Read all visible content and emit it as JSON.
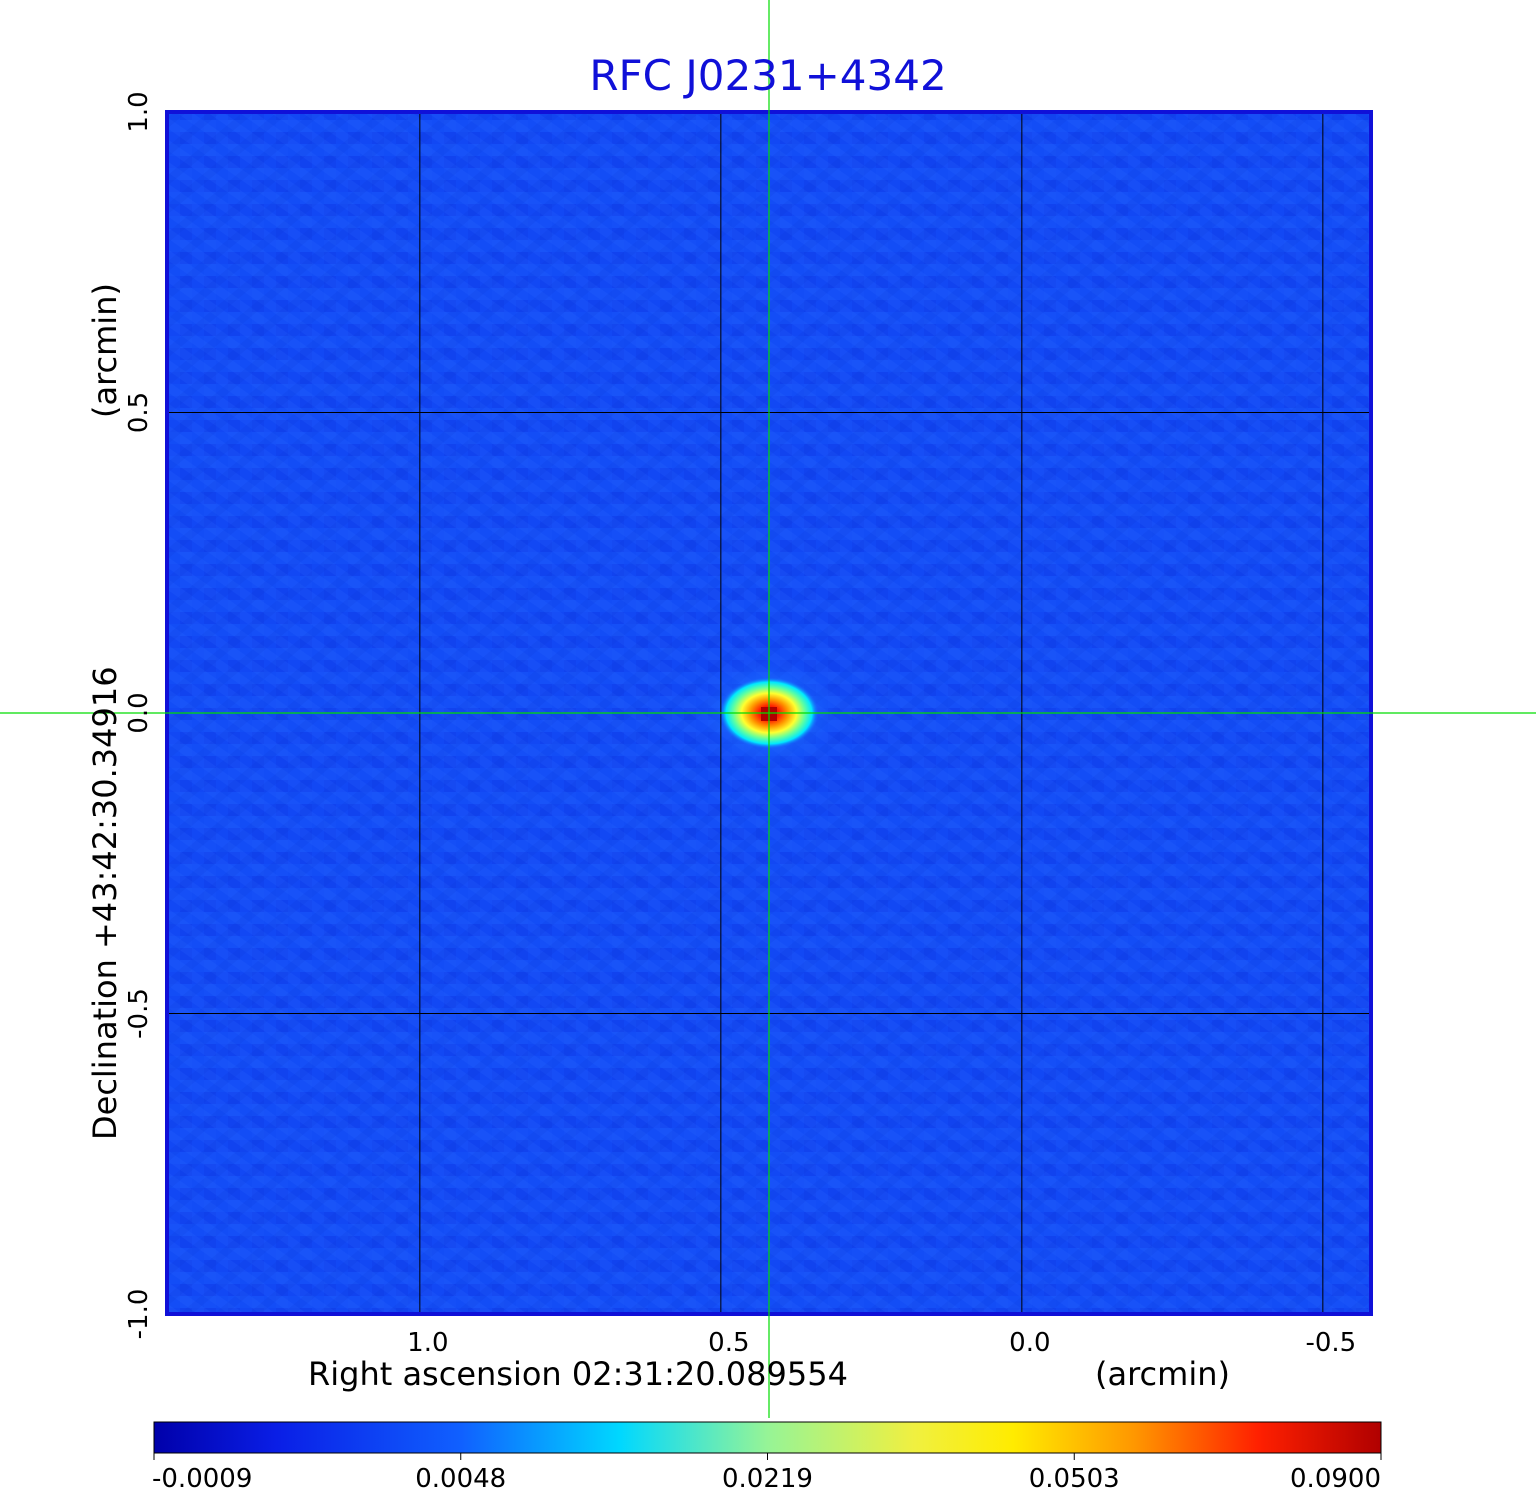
{
  "chart_data": {
    "type": "heatmap",
    "title": "RFC J0231+4342",
    "xlabel": "Right ascension  02:31:20.089554",
    "xunit": "(arcmin)",
    "ylabel": "Declination  +43:42:30.34916",
    "yunit": "(arcmin)",
    "x_ticks": [
      "1.0",
      "0.5",
      "0.0",
      "-0.5"
    ],
    "y_ticks": [
      "1.0",
      "0.5",
      "0.0",
      "-0.5",
      "-1.0"
    ],
    "x_tick_values": [
      1.0,
      0.5,
      0.0,
      -0.5
    ],
    "y_tick_values": [
      1.0,
      0.5,
      0.0,
      -0.5,
      -1.0
    ],
    "xlim": [
      1.42,
      -0.58
    ],
    "ylim": [
      -1.0,
      1.0
    ],
    "grid": true,
    "crosshair": {
      "x": 0.42,
      "y": 0.0,
      "color": "#00dd00"
    },
    "source_peak": {
      "x": 0.42,
      "y": 0.0,
      "value": 0.09
    },
    "colorbar": {
      "colormap": "jet",
      "ticks": [
        "-0.0009",
        "0.0048",
        "0.0219",
        "0.0503",
        "0.0900"
      ],
      "values": [
        -0.0009,
        0.0048,
        0.0219,
        0.0503,
        0.09
      ]
    }
  }
}
